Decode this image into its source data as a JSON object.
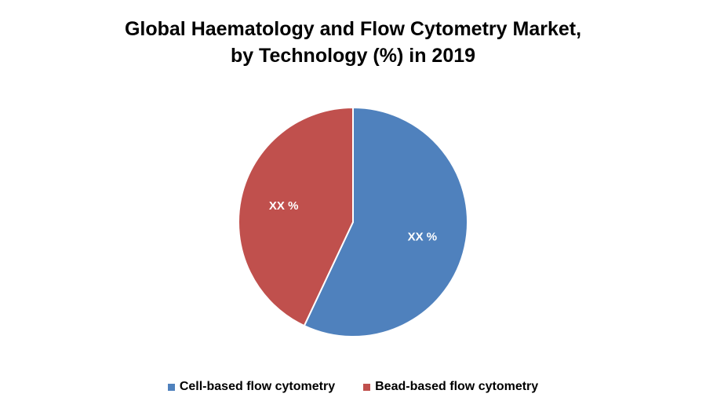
{
  "chart_data": {
    "type": "pie",
    "title_lines": [
      "Global Haematology and Flow Cytometry Market,",
      "by Technology (%) in 2019"
    ],
    "slices": [
      {
        "name": "Cell-based flow cytometry",
        "value": 57,
        "label": "XX %",
        "color": "#4F81BD"
      },
      {
        "name": "Bead-based flow cytometry",
        "value": 43,
        "label": "XX %",
        "color": "#C0504D"
      }
    ],
    "legend_position": "bottom"
  }
}
